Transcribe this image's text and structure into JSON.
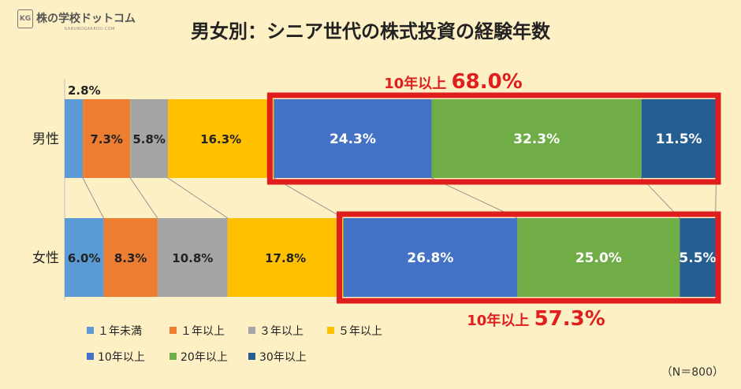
{
  "logo": {
    "icon_letters": "KG",
    "name": "株の学校ドットコム",
    "sub": "KABUNOGAKKOU.COM"
  },
  "chart_data": {
    "type": "bar",
    "stacked": true,
    "percent": true,
    "orientation": "horizontal",
    "title": "男女別：シニア世代の株式投資の経験年数",
    "categories": [
      "男性",
      "女性"
    ],
    "series": [
      {
        "name": "１年未満",
        "color": "#5b9bd5",
        "values": [
          2.8,
          6.0
        ]
      },
      {
        "name": "１年以上",
        "color": "#ed7d31",
        "values": [
          7.3,
          8.3
        ]
      },
      {
        "name": "３年以上",
        "color": "#a5a5a5",
        "values": [
          5.8,
          10.8
        ]
      },
      {
        "name": "５年以上",
        "color": "#ffc000",
        "values": [
          16.3,
          17.8
        ]
      },
      {
        "name": "10年以上",
        "color": "#4472c4",
        "values": [
          24.3,
          26.8
        ]
      },
      {
        "name": "20年以上",
        "color": "#70ad47",
        "values": [
          32.3,
          25.0
        ]
      },
      {
        "name": "30年以上",
        "color": "#255e91",
        "values": [
          11.5,
          5.5
        ]
      }
    ],
    "value_labels": [
      [
        "2.8%",
        "7.3%",
        "5.8%",
        "16.3%",
        "24.3%",
        "32.3%",
        "11.5%"
      ],
      [
        "6.0%",
        "8.3%",
        "10.8%",
        "17.8%",
        "26.8%",
        "25.0%",
        "5.5%"
      ]
    ],
    "highlight": {
      "color": "#e01e1e",
      "from_series": 4,
      "label_prefix": "10年以上",
      "values": [
        "68.0%",
        "57.3%"
      ]
    },
    "legend_position": "bottom-left",
    "xlim": [
      0,
      100
    ],
    "grid": false
  },
  "note": "（N＝800）"
}
